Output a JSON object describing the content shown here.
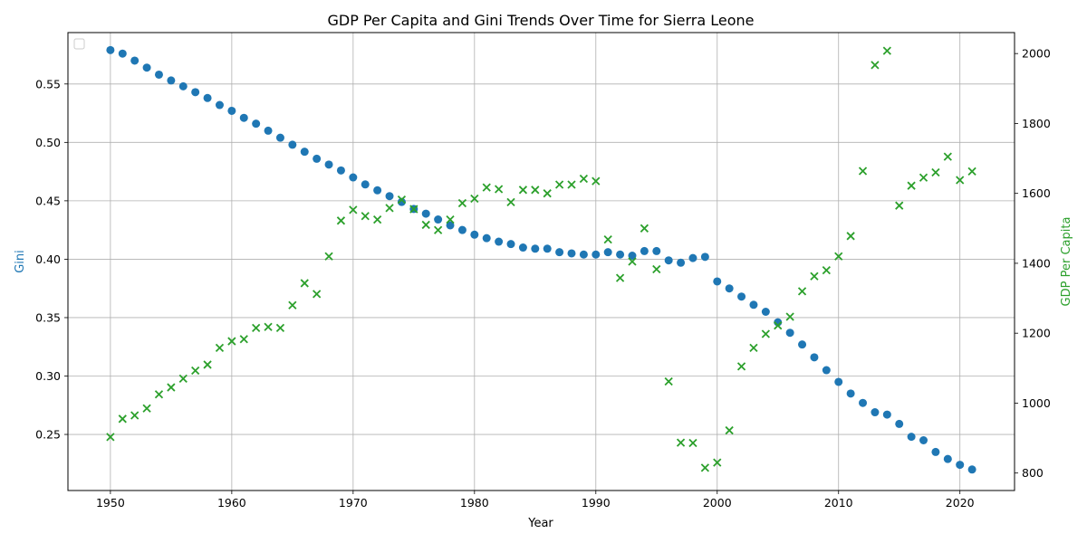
{
  "chart_data": {
    "type": "scatter",
    "title": "GDP Per Capita and Gini Trends Over Time for Sierra Leone",
    "xlabel": "Year",
    "ylabel_left": "Gini",
    "ylabel_right": "GDP Per Capita",
    "xlim": [
      1946.5,
      2024.5
    ],
    "ylim_left": [
      0.202,
      0.594
    ],
    "ylim_right": [
      750,
      2060
    ],
    "x_ticks": [
      1950,
      1960,
      1970,
      1980,
      1990,
      2000,
      2010,
      2020
    ],
    "y_ticks_left": [
      0.25,
      0.3,
      0.35,
      0.4,
      0.45,
      0.5,
      0.55
    ],
    "y_ticks_right": [
      800,
      1000,
      1200,
      1400,
      1600,
      1800,
      2000
    ],
    "grid": true,
    "legend": "top-left",
    "colors": {
      "gini": "#1f77b4",
      "gdp": "#2ca02c"
    },
    "x": [
      1950,
      1951,
      1952,
      1953,
      1954,
      1955,
      1956,
      1957,
      1958,
      1959,
      1960,
      1961,
      1962,
      1963,
      1964,
      1965,
      1966,
      1967,
      1968,
      1969,
      1970,
      1971,
      1972,
      1973,
      1974,
      1975,
      1976,
      1977,
      1978,
      1979,
      1980,
      1981,
      1982,
      1983,
      1984,
      1985,
      1986,
      1987,
      1988,
      1989,
      1990,
      1991,
      1992,
      1993,
      1994,
      1995,
      1996,
      1997,
      1998,
      1999,
      2000,
      2001,
      2002,
      2003,
      2004,
      2005,
      2006,
      2007,
      2008,
      2009,
      2010,
      2011,
      2012,
      2013,
      2014,
      2015,
      2016,
      2017,
      2018,
      2019,
      2020,
      2021
    ],
    "series": [
      {
        "key": "gini",
        "axis": "left",
        "marker": "circle",
        "values": [
          0.579,
          0.576,
          0.57,
          0.564,
          0.558,
          0.553,
          0.548,
          0.543,
          0.538,
          0.532,
          0.527,
          0.521,
          0.516,
          0.51,
          0.504,
          0.498,
          0.492,
          0.486,
          0.481,
          0.476,
          0.47,
          0.464,
          0.459,
          0.454,
          0.449,
          0.443,
          0.439,
          0.434,
          0.429,
          0.425,
          0.421,
          0.418,
          0.415,
          0.413,
          0.41,
          0.409,
          0.409,
          0.406,
          0.405,
          0.404,
          0.404,
          0.406,
          0.404,
          0.403,
          0.407,
          0.407,
          0.399,
          0.397,
          0.401,
          0.402,
          0.381,
          0.375,
          0.368,
          0.361,
          0.355,
          0.346,
          0.337,
          0.327,
          0.316,
          0.305,
          0.295,
          0.285,
          0.277,
          0.269,
          0.267,
          0.259,
          0.248,
          0.245,
          0.235,
          0.229,
          0.224,
          0.22
        ]
      },
      {
        "key": "gdp",
        "axis": "right",
        "marker": "x",
        "values": [
          903,
          955,
          965,
          985,
          1025,
          1045,
          1070,
          1093,
          1110,
          1158,
          1177,
          1183,
          1215,
          1218,
          1215,
          1280,
          1343,
          1312,
          1420,
          1522,
          1553,
          1535,
          1525,
          1558,
          1582,
          1555,
          1510,
          1495,
          1525,
          1572,
          1585,
          1617,
          1612,
          1575,
          1610,
          1610,
          1600,
          1625,
          1625,
          1642,
          1635,
          1468,
          1358,
          1405,
          1500,
          1383,
          1062,
          887,
          886,
          815,
          830,
          922,
          1105,
          1158,
          1198,
          1222,
          1247,
          1320,
          1363,
          1380,
          1420,
          1478,
          1664,
          1967,
          2008,
          1565,
          1622,
          1645,
          1660,
          1705,
          1638,
          1663
        ]
      }
    ]
  }
}
